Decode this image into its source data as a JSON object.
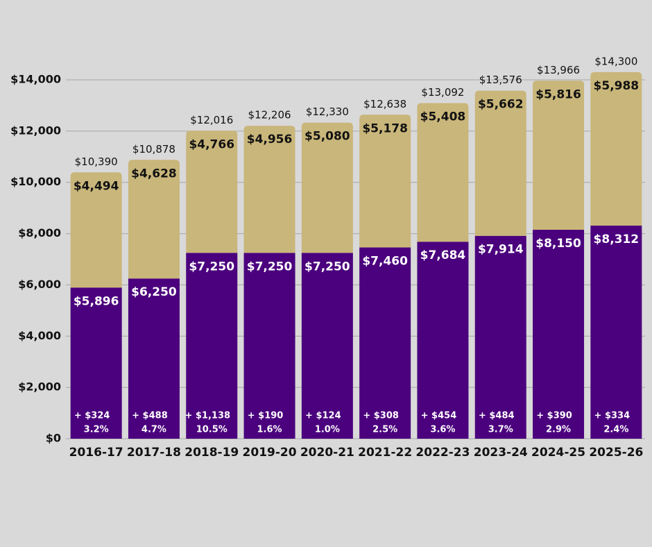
{
  "chart_data": {
    "type": "stacked_bar",
    "categories": [
      "2016-17",
      "2017-18",
      "2018-19",
      "2019-20",
      "2020-21",
      "2021-22",
      "2022-23",
      "2023-24",
      "2024-25",
      "2025-26"
    ],
    "series": [
      {
        "color": "#4b007d",
        "values": [
          5896,
          6250,
          7250,
          7250,
          7250,
          7460,
          7684,
          7914,
          8150,
          8312
        ],
        "value_labels": [
          "$5,896",
          "$6,250",
          "$7,250",
          "$7,250",
          "$7,250",
          "$7,460",
          "$7,684",
          "$7,914",
          "$8,150",
          "$8,312"
        ]
      },
      {
        "color": "#c9b67a",
        "values": [
          4494,
          4628,
          4766,
          4956,
          5080,
          5178,
          5408,
          5662,
          5816,
          5988
        ],
        "value_labels": [
          "$4,494",
          "$4,628",
          "$4,766",
          "$4,956",
          "$5,080",
          "$5,178",
          "$5,408",
          "$5,662",
          "$5,816",
          "$5,988"
        ]
      }
    ],
    "totals": {
      "values": [
        10390,
        10878,
        12016,
        12206,
        12330,
        12638,
        13092,
        13576,
        13966,
        14300
      ],
      "value_labels": [
        "$10,390",
        "$10,878",
        "$12,016",
        "$12,206",
        "$12,330",
        "$12,638",
        "$13,092",
        "$13,576",
        "$13,966",
        "$14,300"
      ]
    },
    "increase": {
      "values": [
        324,
        488,
        1138,
        190,
        124,
        308,
        454,
        484,
        390,
        334
      ],
      "value_labels": [
        "+ $324",
        "+ $488",
        "+ $1,138",
        "+ $190",
        "+ $124",
        "+ $308",
        "+ $454",
        "+ $484",
        "+ $390",
        "+ $334"
      ]
    },
    "percent_change": {
      "values": [
        3.2,
        4.7,
        10.5,
        1.6,
        1.0,
        2.5,
        3.6,
        3.7,
        2.9,
        2.4
      ],
      "value_labels": [
        "3.2%",
        "4.7%",
        "10.5%",
        "1.6%",
        "1.0%",
        "2.5%",
        "3.6%",
        "3.7%",
        "2.9%",
        "2.4%"
      ]
    },
    "ylim": [
      0,
      14000
    ],
    "yticks": [
      {
        "value": 0,
        "label": "$0"
      },
      {
        "value": 2000,
        "label": "$2,000"
      },
      {
        "value": 4000,
        "label": "$4,000"
      },
      {
        "value": 6000,
        "label": "$6,000"
      },
      {
        "value": 8000,
        "label": "$8,000"
      },
      {
        "value": 10000,
        "label": "$10,000"
      },
      {
        "value": 12000,
        "label": "$12,000"
      },
      {
        "value": 14000,
        "label": "$14,000"
      }
    ],
    "grid": true
  }
}
